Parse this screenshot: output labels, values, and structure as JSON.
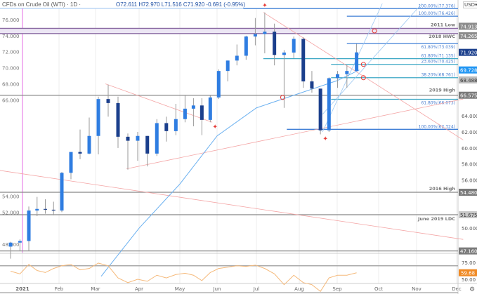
{
  "header": {
    "symbol_title": "CFDs on Crude Oil (WTI) · 1D ·",
    "ohlc": "O72.611 H72.970 L71.516 C71.920 -0.691 (-0.95%)",
    "currency": "USD▾"
  },
  "colors": {
    "up": "#2f7de1",
    "down": "#1b3f8c",
    "ma": "#6ab0f0",
    "trend": "#f4a5a5",
    "fib": "#3f7fd6",
    "fib_teal": "#3ba7c4",
    "zone": "#8a6aa3",
    "rsi": "#f5b97a",
    "rsi_label": "#f08a24",
    "level": "#888888",
    "start_line": "#e66be6"
  },
  "chart_data": {
    "type": "candlestick",
    "title": "CFDs on Crude Oil (WTI) · 1D",
    "ylim": [
      44.5,
      78.0
    ],
    "y_ticks": [
      48,
      50,
      52,
      54,
      56,
      58,
      60,
      62,
      64,
      66,
      68,
      70,
      72,
      74,
      76
    ],
    "x_ticks": [
      {
        "label": "2021",
        "date": "2021-01-01"
      },
      {
        "label": "Feb",
        "date": "2021-02-01"
      },
      {
        "label": "Mar",
        "date": "2021-03-01"
      },
      {
        "label": "Apr",
        "date": "2021-04-01"
      },
      {
        "label": "May",
        "date": "2021-05-01"
      },
      {
        "label": "Jun",
        "date": "2021-06-01"
      },
      {
        "label": "Jul",
        "date": "2021-07-01"
      },
      {
        "label": "Aug",
        "date": "2021-08-01"
      },
      {
        "label": "Sep",
        "date": "2021-09-01"
      },
      {
        "label": "Oct",
        "date": "2021-10-01"
      },
      {
        "label": "Nov",
        "date": "2021-11-01"
      },
      {
        "label": "Dec",
        "date": "2021-12-01"
      }
    ],
    "candles": [
      [
        "2020-12-21",
        47.7,
        48.3,
        46.2,
        48.2
      ],
      [
        "2020-12-28",
        48.2,
        48.6,
        47.2,
        48.4
      ],
      [
        "2021-01-04",
        48.4,
        52.7,
        47.2,
        52.2
      ],
      [
        "2021-01-11",
        52.2,
        53.9,
        51.5,
        52.4
      ],
      [
        "2021-01-18",
        52.4,
        53.6,
        51.8,
        52.3
      ],
      [
        "2021-01-25",
        52.3,
        53.3,
        51.6,
        52.2
      ],
      [
        "2021-02-01",
        52.2,
        57.0,
        52.0,
        56.9
      ],
      [
        "2021-02-08",
        56.9,
        59.4,
        56.1,
        59.5
      ],
      [
        "2021-02-15",
        59.5,
        62.3,
        58.6,
        59.3
      ],
      [
        "2021-02-22",
        59.3,
        63.8,
        59.2,
        61.5
      ],
      [
        "2021-03-01",
        61.5,
        66.4,
        59.2,
        66.1
      ],
      [
        "2021-03-08",
        66.1,
        67.9,
        63.9,
        65.6
      ],
      [
        "2021-03-15",
        65.6,
        66.4,
        60.0,
        61.4
      ],
      [
        "2021-03-22",
        61.4,
        61.8,
        57.3,
        60.9
      ],
      [
        "2021-03-29",
        60.9,
        62.0,
        58.4,
        61.5
      ],
      [
        "2021-04-05",
        61.5,
        61.5,
        57.7,
        59.3
      ],
      [
        "2021-04-12",
        59.3,
        63.6,
        59.0,
        63.1
      ],
      [
        "2021-04-19",
        63.1,
        63.9,
        60.8,
        62.1
      ],
      [
        "2021-04-26",
        62.1,
        65.5,
        61.6,
        63.6
      ],
      [
        "2021-05-03",
        63.6,
        66.6,
        63.2,
        64.9
      ],
      [
        "2021-05-10",
        64.9,
        66.2,
        62.7,
        65.3
      ],
      [
        "2021-05-17",
        65.3,
        66.2,
        61.6,
        63.5
      ],
      [
        "2021-05-24",
        63.5,
        66.6,
        63.2,
        66.3
      ],
      [
        "2021-05-31",
        66.3,
        69.8,
        66.1,
        69.6
      ],
      [
        "2021-06-07",
        69.6,
        70.9,
        68.3,
        70.9
      ],
      [
        "2021-06-14",
        70.9,
        72.9,
        70.3,
        71.5
      ],
      [
        "2021-06-21",
        71.5,
        74.0,
        71.0,
        73.9
      ],
      [
        "2021-06-28",
        73.9,
        76.2,
        72.8,
        74.2
      ],
      [
        "2021-07-05",
        74.2,
        76.9,
        71.8,
        74.5
      ],
      [
        "2021-07-12",
        74.5,
        75.5,
        70.3,
        71.6
      ],
      [
        "2021-07-19",
        71.6,
        72.2,
        65.0,
        71.9
      ],
      [
        "2021-07-26",
        71.9,
        73.9,
        71.2,
        73.6
      ],
      [
        "2021-08-02",
        73.6,
        73.8,
        67.5,
        68.3
      ],
      [
        "2021-08-09",
        68.3,
        69.6,
        66.9,
        67.4
      ],
      [
        "2021-08-16",
        67.4,
        67.4,
        61.7,
        62.2
      ],
      [
        "2021-08-23",
        62.2,
        68.8,
        62.0,
        68.7
      ],
      [
        "2021-08-30",
        68.7,
        69.6,
        67.5,
        69.2
      ],
      [
        "2021-09-06",
        69.2,
        70.3,
        67.5,
        69.6
      ],
      [
        "2021-09-13",
        69.6,
        72.97,
        69.6,
        71.92
      ]
    ],
    "moving_average": [
      [
        "2021-03-05",
        44.0
      ],
      [
        "2021-04-01",
        50.0
      ],
      [
        "2021-05-01",
        55.5
      ],
      [
        "2021-06-01",
        61.5
      ],
      [
        "2021-07-01",
        65.0
      ],
      [
        "2021-08-01",
        66.8
      ],
      [
        "2021-09-01",
        68.4
      ],
      [
        "2021-09-17",
        69.728
      ]
    ],
    "levels": [
      {
        "label": "2011 Low",
        "value": 74.913,
        "kind": "zone"
      },
      {
        "label": "2018 HWC",
        "value": 74.265,
        "kind": "zone"
      },
      {
        "label": "2019 High",
        "value": 66.575,
        "kind": "level"
      },
      {
        "label": "2016 High",
        "value": 54.48,
        "kind": "level"
      },
      {
        "label": "June 2019 LDC",
        "value": 51.675,
        "kind": "level"
      },
      {
        "label": "",
        "value": 47.16,
        "kind": "level"
      }
    ],
    "fib_levels": [
      {
        "label": "100.00%(77.376)",
        "value": 77.376,
        "from": "2021-06-21",
        "teal": false
      },
      {
        "label": "100.00%(76.426)",
        "value": 76.426,
        "from": "2021-09-08",
        "teal": false
      },
      {
        "label": "61.80%(73.039)",
        "value": 73.039,
        "from": "2021-09-08",
        "teal": false
      },
      {
        "label": "61.80%(71.135)",
        "value": 71.135,
        "from": "2021-07-06",
        "teal": true
      },
      {
        "label": "23.60%(70.425)",
        "value": 70.425,
        "from": "2021-08-27",
        "teal": true
      },
      {
        "label": "38.20%(68.761)",
        "value": 68.761,
        "from": "2021-08-27",
        "teal": true
      },
      {
        "label": "61.80%(66.073)",
        "value": 66.073,
        "from": "2021-08-27",
        "teal": true
      },
      {
        "label": "100.00%(62.324)",
        "value": 62.324,
        "from": "2021-07-23",
        "teal": false
      }
    ],
    "price_labels": [
      {
        "value": 74.913,
        "text": "74.913",
        "bg": "#8c8c8c"
      },
      {
        "value": 74.265,
        "text": "74.265",
        "bg": "#8c8c8c"
      },
      {
        "value": 71.92,
        "text": "71.920",
        "bg": "#1b3f8c"
      },
      {
        "value": 69.728,
        "text": "69.728",
        "bg": "#2196f3"
      },
      {
        "value": 68.488,
        "text": "68.488",
        "bg": "#bdbdbd"
      },
      {
        "value": 66.575,
        "text": "66.575",
        "bg": "#7a7a7a"
      },
      {
        "value": 54.48,
        "text": "54.480",
        "bg": "#7a7a7a"
      },
      {
        "value": 51.675,
        "text": "51.675",
        "bg": "#c8c8c8"
      },
      {
        "value": 47.16,
        "text": "47.160",
        "bg": "#7a7a7a"
      }
    ],
    "trendlines": [
      [
        [
          "2021-03-08",
          68.0
        ],
        [
          "2021-05-28",
          63.2
        ]
      ],
      [
        [
          "2021-03-23",
          57.4
        ],
        [
          "2021-12-06",
          66.1
        ]
      ],
      [
        [
          "2020-12-15",
          57.2
        ],
        [
          "2021-12-06",
          48.6
        ]
      ],
      [
        [
          "2021-07-06",
          76.9
        ],
        [
          "2021-12-06",
          61.0
        ]
      ]
    ],
    "channel_lines": [
      [
        [
          "2021-08-20",
          62.0
        ],
        [
          "2021-10-04",
          78.0
        ]
      ],
      [
        [
          "2021-08-20",
          64.2
        ],
        [
          "2021-11-05",
          78.0
        ]
      ]
    ],
    "rsi": {
      "value_label": "59.68",
      "ticks": [
        75,
        50
      ],
      "bands": [
        70,
        30
      ],
      "values": [
        [
          "2020-12-21",
          62
        ],
        [
          "2020-12-28",
          58
        ],
        [
          "2021-01-04",
          72
        ],
        [
          "2021-01-11",
          63
        ],
        [
          "2021-01-18",
          60
        ],
        [
          "2021-01-25",
          66
        ],
        [
          "2021-02-01",
          70
        ],
        [
          "2021-02-08",
          72
        ],
        [
          "2021-02-15",
          64
        ],
        [
          "2021-02-22",
          66
        ],
        [
          "2021-03-01",
          74
        ],
        [
          "2021-03-08",
          70
        ],
        [
          "2021-03-15",
          52
        ],
        [
          "2021-03-22",
          45
        ],
        [
          "2021-03-29",
          50
        ],
        [
          "2021-04-05",
          47
        ],
        [
          "2021-04-12",
          56
        ],
        [
          "2021-04-19",
          52
        ],
        [
          "2021-04-26",
          57
        ],
        [
          "2021-05-03",
          59
        ],
        [
          "2021-05-10",
          56
        ],
        [
          "2021-05-17",
          48
        ],
        [
          "2021-05-24",
          60
        ],
        [
          "2021-05-31",
          66
        ],
        [
          "2021-06-07",
          68
        ],
        [
          "2021-06-14",
          70
        ],
        [
          "2021-06-21",
          69
        ],
        [
          "2021-06-28",
          71
        ],
        [
          "2021-07-05",
          66
        ],
        [
          "2021-07-12",
          58
        ],
        [
          "2021-07-19",
          42
        ],
        [
          "2021-07-26",
          56
        ],
        [
          "2021-08-02",
          45
        ],
        [
          "2021-08-09",
          42
        ],
        [
          "2021-08-16",
          32
        ],
        [
          "2021-08-23",
          52
        ],
        [
          "2021-08-30",
          56
        ],
        [
          "2021-09-06",
          56
        ],
        [
          "2021-09-13",
          59.68
        ]
      ]
    }
  }
}
